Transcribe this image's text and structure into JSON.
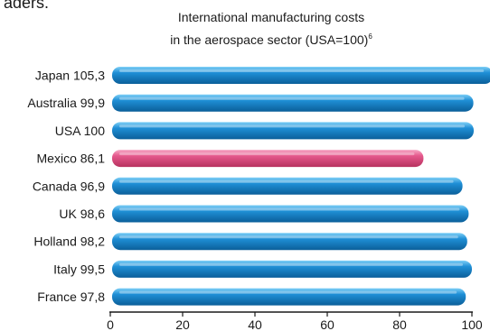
{
  "header_fragment": "aders.",
  "chart_data": {
    "type": "bar",
    "orientation": "horizontal",
    "title": "International manufacturing costs",
    "subtitle": "in the aerospace sector (USA=100)",
    "subtitle_footnote": "6",
    "categories": [
      "Japan 105,3",
      "Australia 99,9",
      "USA 100",
      "Mexico 86,1",
      "Canada 96,9",
      "UK 98,6",
      "Holland 98,2",
      "Italy 99,5",
      "France 97,8"
    ],
    "values": [
      105.3,
      99.9,
      100,
      86.1,
      96.9,
      98.6,
      98.2,
      99.5,
      97.8
    ],
    "highlight": "Mexico 86,1",
    "xlim": [
      0,
      100
    ],
    "xticks": [
      0,
      20,
      40,
      60,
      80,
      100
    ],
    "grid": false,
    "colors": {
      "bar": "#1f8fd6",
      "bar_light": "#7fd0f7",
      "bar_dark": "#0b5f9a",
      "highlight": "#e5588c",
      "highlight_light": "#f6a9c6",
      "highlight_dark": "#b7325f",
      "axis": "#1a1a1a"
    }
  }
}
